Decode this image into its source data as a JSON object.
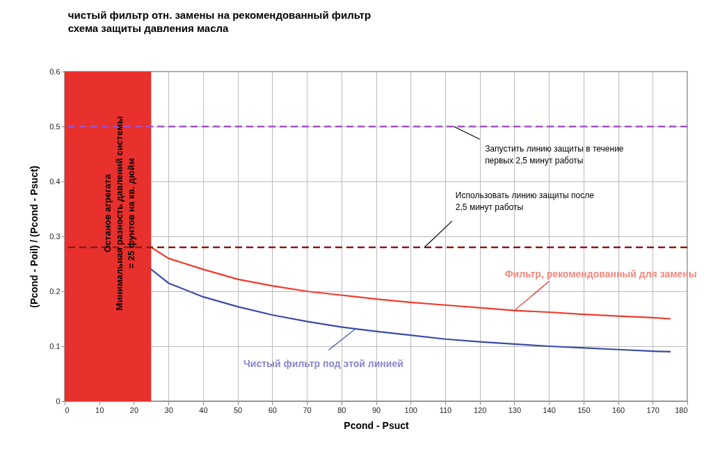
{
  "chart_data": {
    "type": "line",
    "title": "чистый фильтр отн. замены на рекомендованный фильтр",
    "subtitle": "схема защиты давления масла",
    "xlabel": "Pcond - Psuct",
    "ylabel": "(Pcond - Poil) / (Pcond - Psuct)",
    "x": [
      25,
      30,
      40,
      50,
      60,
      70,
      80,
      90,
      100,
      110,
      120,
      130,
      140,
      150,
      160,
      170,
      175
    ],
    "series": [
      {
        "color": "#f03a2a",
        "values": [
          0.28,
          0.26,
          0.24,
          0.222,
          0.21,
          0.2,
          0.193,
          0.186,
          0.18,
          0.175,
          0.17,
          0.165,
          0.162,
          0.158,
          0.155,
          0.152,
          0.15
        ]
      },
      {
        "color": "#3a4aa8",
        "values": [
          0.24,
          0.215,
          0.19,
          0.172,
          0.157,
          0.145,
          0.135,
          0.127,
          0.12,
          0.113,
          0.108,
          0.104,
          0.1,
          0.097,
          0.094,
          0.091,
          0.09
        ]
      }
    ],
    "xlim": [
      0,
      180
    ],
    "ylim": [
      0,
      0.6
    ],
    "xticks": [
      0,
      10,
      20,
      30,
      40,
      50,
      60,
      70,
      80,
      90,
      100,
      110,
      120,
      130,
      140,
      150,
      160,
      170,
      180
    ],
    "yticks": [
      0,
      0.1,
      0.2,
      0.3,
      0.4,
      0.5,
      0.6
    ],
    "grid": true,
    "ref_lines": [
      {
        "axis": "y",
        "value": 0.5,
        "color": "#a050c8",
        "line_style": "dashed"
      },
      {
        "axis": "y",
        "value": 0.28,
        "color": "#8b1a1a",
        "line_style": "dashed"
      }
    ],
    "bands": [
      {
        "axis": "x",
        "from": 0,
        "to": 25,
        "color": "#e8302c",
        "label": "Останов агрегата\nМинимальная разность давлений системы\n= 25 фунтов на кв. дюйм"
      }
    ],
    "annotations": [
      {
        "text": "Запустить линию защиты в течение\nпервых 2,5 минут работы",
        "x": 112.5,
        "y": 0.5
      },
      {
        "text": "Использовать линию защиты после\n2,5 минут работы",
        "x": 104,
        "y": 0.28
      },
      {
        "text": "Фильтр, рекомендованный для замены",
        "x": 130,
        "y": 0.165
      },
      {
        "text": "Чистый фильтр под этой линией",
        "x": 84.3,
        "y": 0.133
      }
    ]
  }
}
